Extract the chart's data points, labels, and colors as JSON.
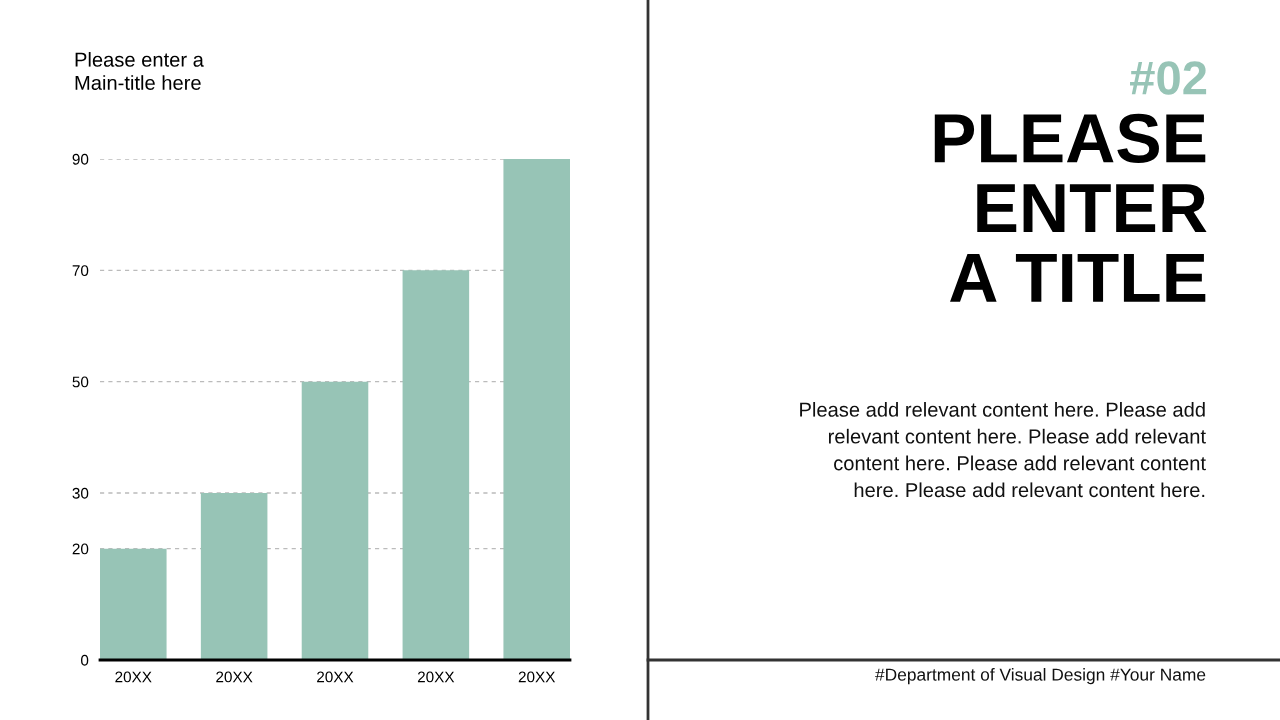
{
  "chart_data": {
    "type": "bar",
    "title": "Please enter a\nMain-title here",
    "categories": [
      "20XX",
      "20XX",
      "20XX",
      "20XX",
      "20XX"
    ],
    "values": [
      20,
      30,
      50,
      70,
      90
    ],
    "color": "#97c4b6",
    "ylim": [
      0,
      90
    ],
    "yticks": [
      0,
      20,
      30,
      50,
      70,
      90
    ],
    "grid": "y",
    "annotations": [
      "#02",
      "PLEASE\nENTER\nA TITLE",
      "Please add relevant content here. Please add\nrelevant content here. Please add relevant\ncontent here. Please add relevant content\nhere. Please add relevant content here.",
      "#Department of Visual Design #Your Name"
    ]
  }
}
